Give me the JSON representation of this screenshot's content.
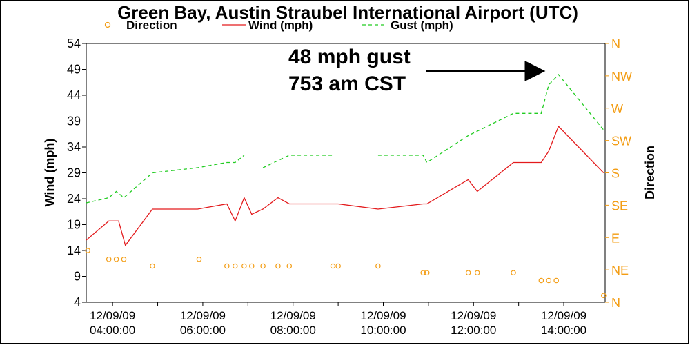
{
  "chart_data": {
    "type": "line",
    "title": "Green Bay, Austin Straubel International Airport  (UTC)",
    "ylabel": "Wind (mph)",
    "y2label": "Direction",
    "ylim": [
      4,
      54
    ],
    "yticks": [
      4,
      9,
      14,
      19,
      24,
      29,
      34,
      39,
      44,
      49,
      54
    ],
    "y2ticks": [
      "N",
      "NE",
      "E",
      "SE",
      "S",
      "SW",
      "W",
      "NW",
      "N"
    ],
    "xlim": [
      "2009-12-09T03:25",
      "2009-12-09T14:55"
    ],
    "xticks": [
      {
        "time": "2009-12-09T04:00",
        "date": "12/09/09",
        "clock": "04:00:00"
      },
      {
        "time": "2009-12-09T06:00",
        "date": "12/09/09",
        "clock": "06:00:00"
      },
      {
        "time": "2009-12-09T08:00",
        "date": "12/09/09",
        "clock": "08:00:00"
      },
      {
        "time": "2009-12-09T10:00",
        "date": "12/09/09",
        "clock": "10:00:00"
      },
      {
        "time": "2009-12-09T12:00",
        "date": "12/09/09",
        "clock": "12:00:00"
      },
      {
        "time": "2009-12-09T14:00",
        "date": "12/09/09",
        "clock": "14:00:00"
      }
    ],
    "grid": false,
    "legend_position": "top",
    "series": [
      {
        "name": "Direction",
        "style": "circles",
        "color": "#f39c12",
        "axis": "right",
        "points": [
          [
            "2009-12-09T03:27",
            14
          ],
          [
            "2009-12-09T03:55",
            12.3
          ],
          [
            "2009-12-09T04:05",
            12.3
          ],
          [
            "2009-12-09T04:15",
            12.3
          ],
          [
            "2009-12-09T04:53",
            11
          ],
          [
            "2009-12-09T05:55",
            12.3
          ],
          [
            "2009-12-09T06:32",
            11
          ],
          [
            "2009-12-09T06:43",
            11
          ],
          [
            "2009-12-09T06:55",
            11
          ],
          [
            "2009-12-09T07:05",
            11
          ],
          [
            "2009-12-09T07:20",
            11
          ],
          [
            "2009-12-09T07:40",
            11
          ],
          [
            "2009-12-09T07:55",
            11
          ],
          [
            "2009-12-09T08:53",
            11
          ],
          [
            "2009-12-09T09:00",
            11
          ],
          [
            "2009-12-09T09:53",
            11
          ],
          [
            "2009-12-09T10:53",
            9.7
          ],
          [
            "2009-12-09T10:58",
            9.7
          ],
          [
            "2009-12-09T11:53",
            9.7
          ],
          [
            "2009-12-09T12:05",
            9.7
          ],
          [
            "2009-12-09T12:53",
            9.7
          ],
          [
            "2009-12-09T13:30",
            8.2
          ],
          [
            "2009-12-09T13:40",
            8.2
          ],
          [
            "2009-12-09T13:50",
            8.2
          ],
          [
            "2009-12-09T14:53",
            5.3
          ]
        ]
      },
      {
        "name": "Wind (mph)",
        "style": "solid",
        "color": "#e31a1c",
        "axis": "left",
        "segments": [
          [
            [
              "2009-12-09T03:25",
              16
            ],
            [
              "2009-12-09T03:55",
              19.7
            ],
            [
              "2009-12-09T04:08",
              19.7
            ],
            [
              "2009-12-09T04:17",
              15
            ],
            [
              "2009-12-09T04:53",
              22
            ],
            [
              "2009-12-09T05:53",
              22
            ],
            [
              "2009-12-09T06:32",
              23
            ],
            [
              "2009-12-09T06:43",
              19.7
            ],
            [
              "2009-12-09T06:55",
              24.2
            ],
            [
              "2009-12-09T07:05",
              21
            ],
            [
              "2009-12-09T07:20",
              22
            ],
            [
              "2009-12-09T07:40",
              24.2
            ],
            [
              "2009-12-09T07:55",
              23
            ],
            [
              "2009-12-09T08:53",
              23
            ],
            [
              "2009-12-09T09:00",
              23
            ],
            [
              "2009-12-09T09:53",
              22
            ],
            [
              "2009-12-09T10:53",
              23
            ],
            [
              "2009-12-09T10:58",
              23
            ],
            [
              "2009-12-09T11:53",
              27.7
            ],
            [
              "2009-12-09T12:05",
              25.4
            ],
            [
              "2009-12-09T12:53",
              31
            ],
            [
              "2009-12-09T13:30",
              31
            ],
            [
              "2009-12-09T13:40",
              33.2
            ],
            [
              "2009-12-09T13:53",
              38
            ],
            [
              "2009-12-09T14:53",
              29
            ]
          ]
        ]
      },
      {
        "name": "Gust (mph)",
        "style": "dashed",
        "color": "#22cc22",
        "axis": "left",
        "segments": [
          [
            [
              "2009-12-09T03:25",
              23.2
            ],
            [
              "2009-12-09T03:55",
              24.2
            ],
            [
              "2009-12-09T04:05",
              25.4
            ],
            [
              "2009-12-09T04:15",
              24.2
            ],
            [
              "2009-12-09T04:53",
              29
            ],
            [
              "2009-12-09T05:53",
              30
            ],
            [
              "2009-12-09T06:32",
              31
            ],
            [
              "2009-12-09T06:43",
              31
            ],
            [
              "2009-12-09T06:55",
              32.4
            ]
          ],
          [
            [
              "2009-12-09T07:20",
              30
            ],
            [
              "2009-12-09T07:55",
              32.4
            ],
            [
              "2009-12-09T08:53",
              32.4
            ]
          ],
          [
            [
              "2009-12-09T09:53",
              32.4
            ],
            [
              "2009-12-09T10:53",
              32.4
            ],
            [
              "2009-12-09T10:58",
              31
            ],
            [
              "2009-12-09T11:53",
              36.2
            ],
            [
              "2009-12-09T12:53",
              40.5
            ],
            [
              "2009-12-09T13:30",
              40.5
            ],
            [
              "2009-12-09T13:40",
              46
            ],
            [
              "2009-12-09T13:53",
              48
            ],
            [
              "2009-12-09T14:53",
              37.3
            ]
          ]
        ]
      }
    ],
    "annotation": {
      "line1": "48 mph gust",
      "line2": "753 am CST",
      "points_to": [
        "2009-12-09T13:53",
        48
      ]
    }
  }
}
